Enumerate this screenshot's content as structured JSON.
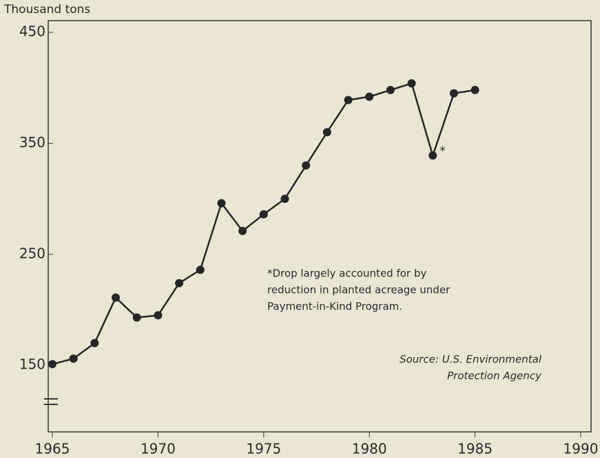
{
  "chart_data": {
    "type": "line",
    "y_label": "Thousand tons",
    "x": [
      1965,
      1966,
      1967,
      1968,
      1969,
      1970,
      1971,
      1972,
      1973,
      1974,
      1975,
      1976,
      1977,
      1978,
      1979,
      1980,
      1981,
      1982,
      1983,
      1984,
      1985
    ],
    "series": [
      {
        "color": "#262626",
        "values": [
          151,
          156,
          170,
          211,
          193,
          195,
          224,
          236,
          296,
          271,
          286,
          300,
          330,
          360,
          389,
          392,
          398,
          404,
          339,
          395,
          398
        ]
      }
    ],
    "xlim": [
      1965,
      1990
    ],
    "xticks": [
      1965,
      1970,
      1975,
      1980,
      1985,
      1990
    ],
    "ylim": [
      90,
      450
    ],
    "yticks": [
      150,
      250,
      350,
      450
    ],
    "annotations": {
      "marker": "*",
      "note": [
        "*Drop largely accounted for by",
        "reduction in planted acreage under",
        "Payment-in-Kind Program."
      ],
      "source": [
        "Source: U.S. Environmental",
        "Protection Agency"
      ]
    }
  }
}
